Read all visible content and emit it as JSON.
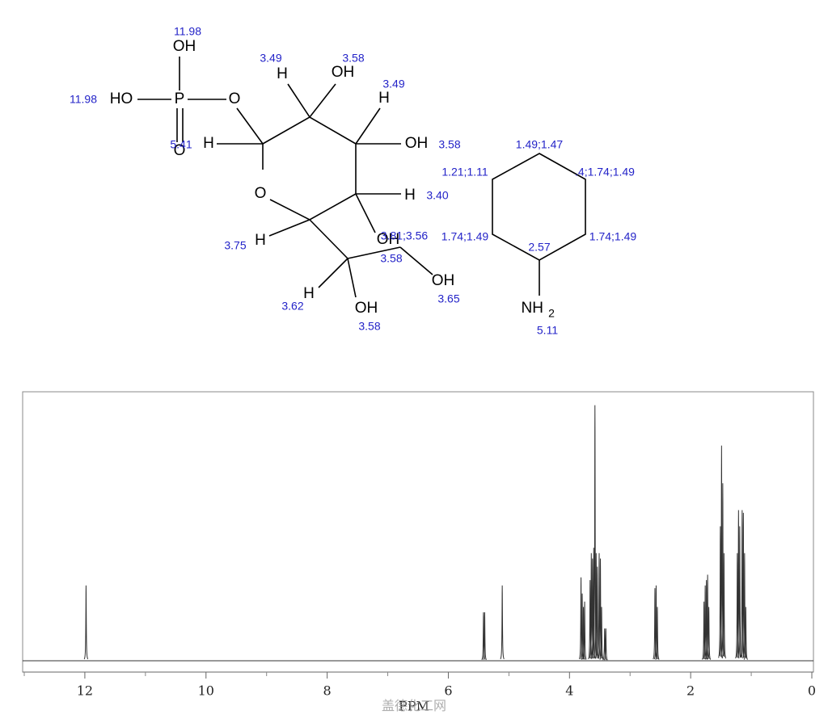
{
  "molecule": {
    "atoms": [
      "OH",
      "HO",
      "P",
      "O",
      "O",
      "H",
      "OH",
      "H",
      "H",
      "OH",
      "O",
      "H",
      "H",
      "OH",
      "OH",
      "H",
      "OH",
      "NH",
      "2"
    ],
    "shifts": [
      "11.98",
      "11.98",
      "3.49",
      "3.58",
      "3.49",
      "5.41",
      "3.58",
      "3.40",
      "3.75",
      "3.81;3.56",
      "3.58",
      "3.65",
      "3.62",
      "3.58",
      "1.49;1.47",
      "1.21;1.11",
      ".4;1.74;1.49",
      "1.74;1.49",
      "1.74;1.49",
      "2.57",
      "5.11"
    ]
  },
  "chart_data": {
    "type": "nmr",
    "x_label": "PPM",
    "watermark": "盖德化工网",
    "xlim": [
      13,
      0
    ],
    "xticks": [
      12,
      10,
      8,
      6,
      4,
      2,
      0
    ],
    "minor_xticks": [
      13,
      11,
      9,
      7,
      5,
      3,
      1
    ],
    "ylim": [
      0,
      1
    ],
    "color": "#333333",
    "x": [
      11.98,
      5.42,
      5.4,
      5.11,
      3.81,
      3.79,
      3.77,
      3.75,
      3.66,
      3.64,
      3.62,
      3.6,
      3.58,
      3.56,
      3.54,
      3.51,
      3.49,
      3.47,
      3.42,
      3.4,
      2.59,
      2.57,
      2.55,
      1.78,
      1.76,
      1.74,
      1.72,
      1.7,
      1.51,
      1.49,
      1.47,
      1.45,
      1.23,
      1.21,
      1.19,
      1.15,
      1.13,
      1.11,
      1.09
    ],
    "values": [
      0.28,
      0.18,
      0.18,
      0.28,
      0.31,
      0.25,
      0.2,
      0.22,
      0.3,
      0.4,
      0.38,
      0.42,
      0.95,
      0.4,
      0.35,
      0.4,
      0.38,
      0.2,
      0.12,
      0.12,
      0.27,
      0.28,
      0.2,
      0.22,
      0.28,
      0.3,
      0.32,
      0.2,
      0.5,
      0.8,
      0.66,
      0.4,
      0.4,
      0.56,
      0.5,
      0.56,
      0.55,
      0.4,
      0.2
    ]
  }
}
